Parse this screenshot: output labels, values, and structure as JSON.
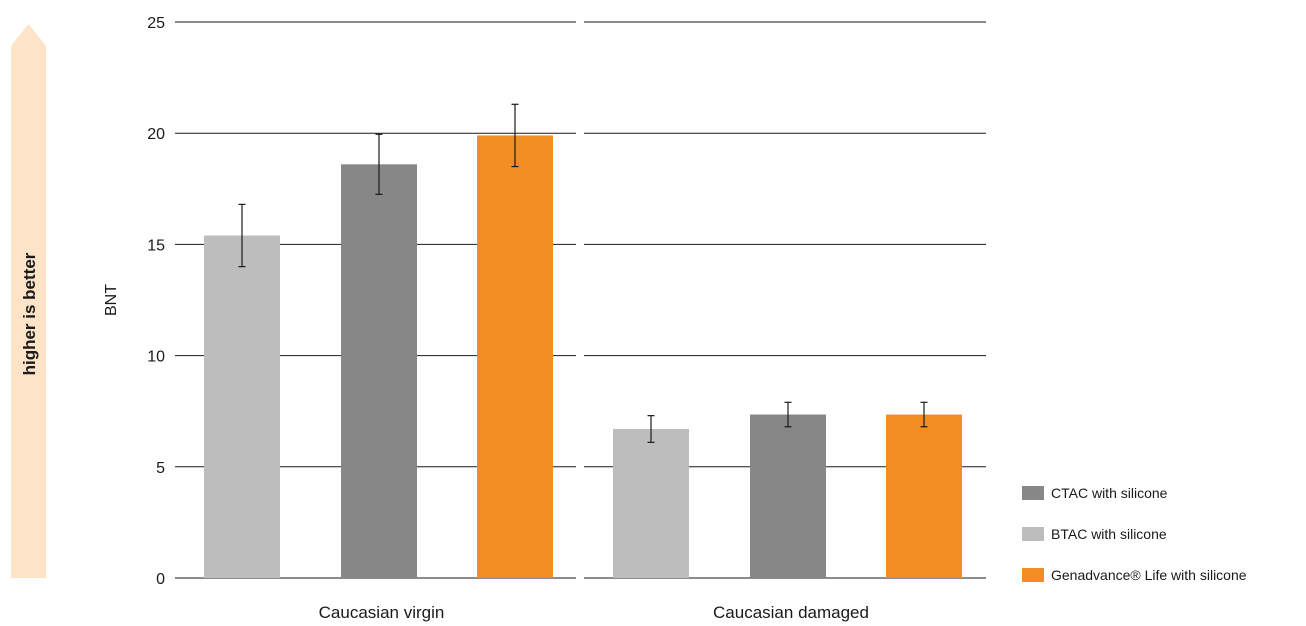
{
  "chart_data": {
    "type": "bar",
    "ylabel": "BNT",
    "ylim": [
      0,
      25
    ],
    "yticks": [
      0,
      5,
      10,
      15,
      20,
      25
    ],
    "grid": true,
    "side_arrow_label": "higher is better",
    "categories": [
      "Caucasian virgin",
      "Caucasian damaged"
    ],
    "series": [
      {
        "name": "BTAC with silicone",
        "color": "#bcbdbc",
        "values": [
          15.4,
          6.7
        ],
        "error": [
          1.4,
          0.6
        ]
      },
      {
        "name": "CTAC with silicone",
        "color": "#878787",
        "values": [
          18.6,
          7.35
        ],
        "error": [
          1.35,
          0.55
        ]
      },
      {
        "name": "Genadvance® Life with silicone",
        "color": "#f18d22",
        "values": [
          19.9,
          7.35
        ],
        "error": [
          1.4,
          0.55
        ]
      }
    ],
    "legend": {
      "placement": "bottom-right",
      "items": [
        {
          "label": "CTAC with silicone",
          "color": "#878787"
        },
        {
          "label": "BTAC with silicone",
          "color": "#bcbdbc"
        },
        {
          "label": "Genadvance® Life with silicone",
          "color": "#f18d22"
        }
      ]
    },
    "arrow_color": "#fde3c8"
  }
}
